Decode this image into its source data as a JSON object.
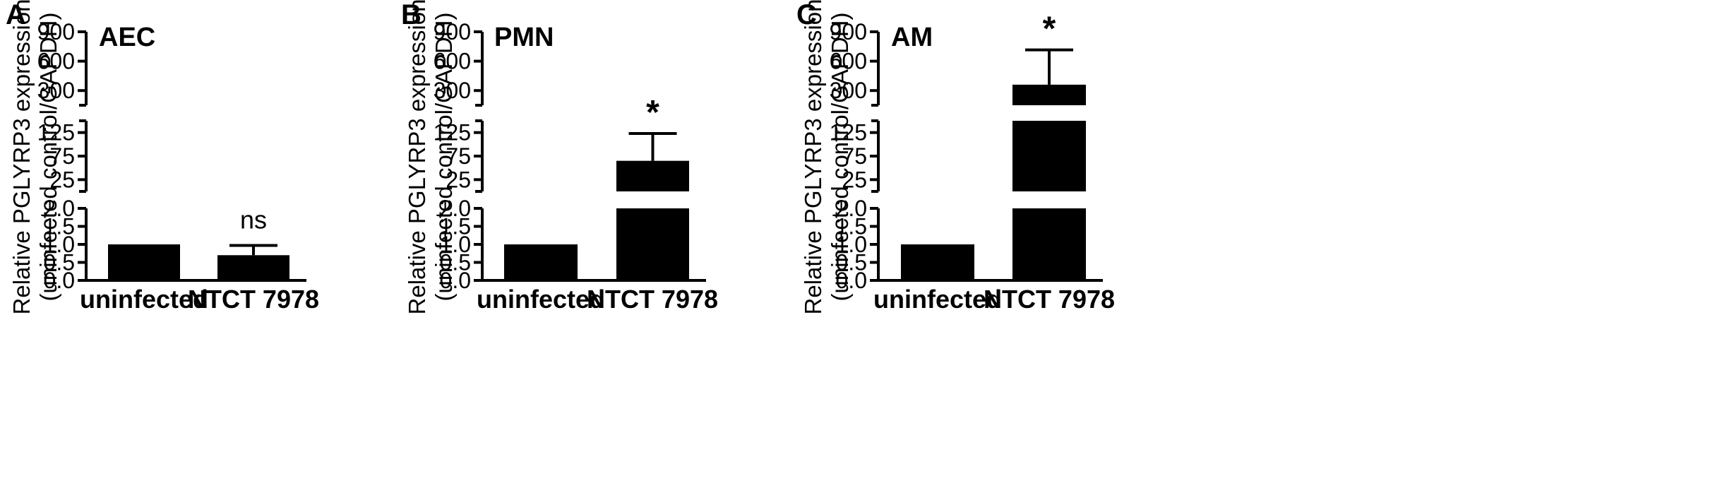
{
  "chart_data": [
    {
      "type": "bar",
      "panel": "A",
      "cell_label": "AEC",
      "ylabel_line1": "Relative PGLYRP3 expression",
      "ylabel_line2": "(uninfected control/GAPDH)",
      "categories": [
        "uninfected",
        "NTCT 7978"
      ],
      "values": [
        1.0,
        0.7
      ],
      "errors": [
        0,
        0.27
      ],
      "significance": [
        "",
        "ns"
      ],
      "y_segments": [
        {
          "range": [
            0,
            2
          ],
          "ticks": [
            "0.0",
            "0.5",
            "1.0",
            "1.5",
            "2.0"
          ],
          "tick_values": [
            0,
            0.5,
            1,
            1.5,
            2
          ]
        },
        {
          "range": [
            0,
            150
          ],
          "ticks": [
            "25",
            "75",
            "125"
          ],
          "tick_values": [
            25,
            75,
            125
          ]
        },
        {
          "range": [
            150,
            900
          ],
          "ticks": [
            "300",
            "600",
            "900"
          ],
          "tick_values": [
            300,
            600,
            900
          ]
        }
      ]
    },
    {
      "type": "bar",
      "panel": "B",
      "cell_label": "PMN",
      "ylabel_line1": "Relative PGLYRP3 expression",
      "ylabel_line2": "(uninfected control/GAPDH)",
      "categories": [
        "uninfected",
        "NTCT 7978"
      ],
      "values": [
        1.0,
        65
      ],
      "errors": [
        0,
        58
      ],
      "significance": [
        "",
        "*"
      ],
      "y_segments": [
        {
          "range": [
            0,
            2
          ],
          "ticks": [
            "0.0",
            "0.5",
            "1.0",
            "1.5",
            "2.0"
          ],
          "tick_values": [
            0,
            0.5,
            1,
            1.5,
            2
          ]
        },
        {
          "range": [
            0,
            150
          ],
          "ticks": [
            "25",
            "75",
            "125"
          ],
          "tick_values": [
            25,
            75,
            125
          ]
        },
        {
          "range": [
            150,
            900
          ],
          "ticks": [
            "300",
            "600",
            "900"
          ],
          "tick_values": [
            300,
            600,
            900
          ]
        }
      ]
    },
    {
      "type": "bar",
      "panel": "C",
      "cell_label": "AM",
      "ylabel_line1": "Relative PGLYRP3 expression",
      "ylabel_line2": "(uninfected control/GAPDH)",
      "categories": [
        "uninfected",
        "NTCT 7978"
      ],
      "values": [
        1.0,
        360
      ],
      "errors": [
        0,
        355
      ],
      "significance": [
        "",
        "*"
      ],
      "y_segments": [
        {
          "range": [
            0,
            2
          ],
          "ticks": [
            "0.0",
            "0.5",
            "1.0",
            "1.5",
            "2.0"
          ],
          "tick_values": [
            0,
            0.5,
            1,
            1.5,
            2
          ]
        },
        {
          "range": [
            0,
            150
          ],
          "ticks": [
            "25",
            "75",
            "125"
          ],
          "tick_values": [
            25,
            75,
            125
          ]
        },
        {
          "range": [
            150,
            900
          ],
          "ticks": [
            "300",
            "600",
            "900"
          ],
          "tick_values": [
            300,
            600,
            900
          ]
        }
      ]
    }
  ]
}
